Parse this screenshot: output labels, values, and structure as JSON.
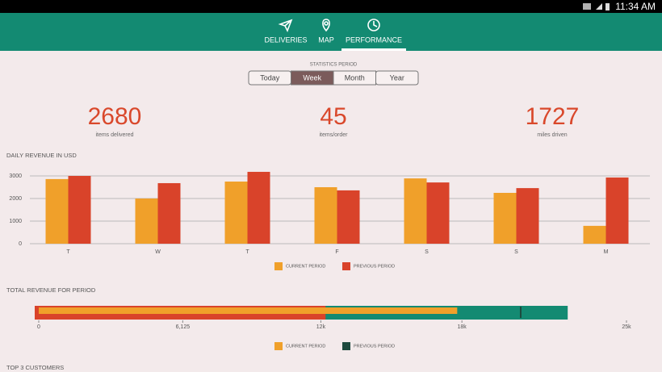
{
  "status_bar": {
    "time": "11:34 AM"
  },
  "nav": {
    "tabs": [
      "DELIVERIES",
      "MAP",
      "PERFORMANCE"
    ],
    "selected": 2
  },
  "period_selector": {
    "label": "STATISTICS PERIOD",
    "options": [
      "Today",
      "Week",
      "Month",
      "Year"
    ],
    "selected": 1
  },
  "kpis": [
    {
      "value": 2680,
      "label": "items delivered"
    },
    {
      "value": 45,
      "label": "items/order"
    },
    {
      "value": 1727,
      "label": "miles driven"
    }
  ],
  "chart_data": [
    {
      "type": "bar",
      "title": "DAILY REVENUE IN USD",
      "categories": [
        "T",
        "W",
        "T",
        "F",
        "S",
        "S",
        "M"
      ],
      "series": [
        {
          "name": "CURRENT PERIOD",
          "color": "#f0a02a",
          "values": [
            2860,
            2000,
            2750,
            2500,
            2890,
            2250,
            790
          ]
        },
        {
          "name": "PREVIOUS PERIOD",
          "color": "#d9432a",
          "values": [
            3000,
            2680,
            3180,
            2360,
            2710,
            2460,
            2930
          ]
        }
      ],
      "ylim": [
        0,
        3500
      ],
      "yticks": [
        0,
        1000,
        2000,
        3000
      ],
      "grid": true
    },
    {
      "type": "bullet",
      "title": "TOTAL REVENUE FOR PERIOD",
      "xlim": [
        0,
        25000
      ],
      "xticks": [
        0,
        {
          "value": 6125,
          "label": "6,125"
        },
        {
          "value": 12000,
          "label": "12k"
        },
        {
          "value": 18000,
          "label": "18k"
        },
        {
          "value": 25000,
          "label": "25k"
        }
      ],
      "ranges": [
        12200,
        22500
      ],
      "range_colors": [
        "#d9432a",
        "#138a72"
      ],
      "series": [
        {
          "name": "CURRENT PERIOD",
          "color": "#f0a02a",
          "values": [
            17800
          ]
        },
        {
          "name": "PREVIOUS PERIOD",
          "color": "#1e4a3e",
          "values": [
            20500
          ]
        }
      ]
    }
  ],
  "next_section": {
    "title": "TOP 3 CUSTOMERS"
  }
}
